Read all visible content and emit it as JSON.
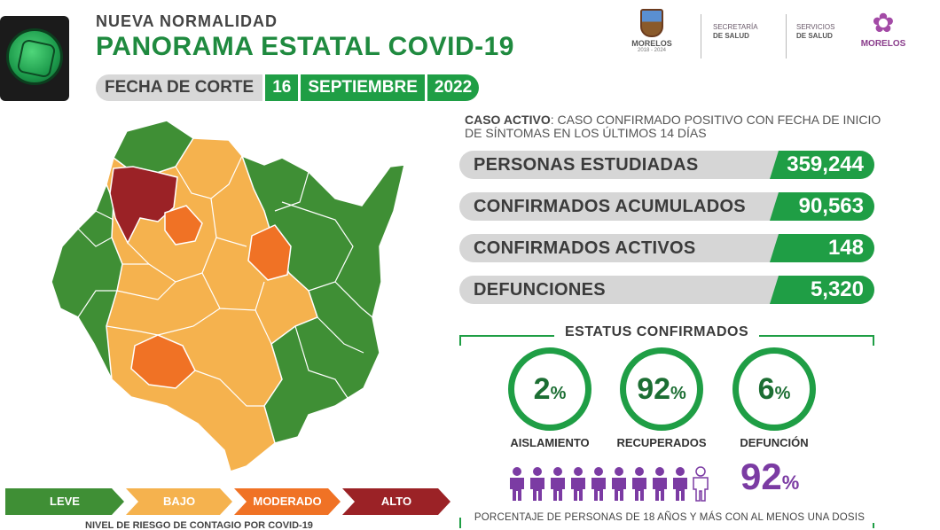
{
  "header": {
    "kicker": "NUEVA  NORMALIDAD",
    "title": "PANORAMA ESTATAL COVID-19",
    "cutoff_label": "FECHA DE CORTE",
    "cutoff_day": "16",
    "cutoff_month": "SEPTIEMBRE",
    "cutoff_year": "2022"
  },
  "logos": {
    "state": "MORELOS",
    "state_years": "2018 - 2024",
    "org1_line1": "SECRETARÍA",
    "org1_line2": "DE SALUD",
    "org2_line1": "SERVICIOS",
    "org2_line2": "DE SALUD",
    "brand": "MORELOS"
  },
  "definition": {
    "term": "CASO ACTIVO",
    "text": ": CASO CONFIRMADO POSITIVO CON FECHA DE INICIO DE SÍNTOMAS EN LOS ÚLTIMOS 14 DÍAS"
  },
  "stats": [
    {
      "label": "PERSONAS ESTUDIADAS",
      "value": "359,244"
    },
    {
      "label": "CONFIRMADOS ACUMULADOS",
      "value": "90,563"
    },
    {
      "label": "CONFIRMADOS ACTIVOS",
      "value": "148"
    },
    {
      "label": "DEFUNCIONES",
      "value": "5,320"
    }
  ],
  "status": {
    "title": "ESTATUS CONFIRMADOS",
    "items": [
      {
        "value": "2",
        "unit": "%",
        "label": "AISLAMIENTO"
      },
      {
        "value": "92",
        "unit": "%",
        "label": "RECUPERADOS"
      },
      {
        "value": "6",
        "unit": "%",
        "label": "DEFUNCIÓN"
      }
    ]
  },
  "vaccination": {
    "value": "92",
    "unit": "%",
    "fraction": 0.92,
    "note": "PORCENTAJE DE PERSONAS DE 18 AÑOS Y MÁS CON AL MENOS UNA DOSIS"
  },
  "legend": {
    "items": [
      {
        "label": "LEVE",
        "color": "#3f8f35"
      },
      {
        "label": "BAJO",
        "color": "#f5b24e"
      },
      {
        "label": "MODERADO",
        "color": "#f07225"
      },
      {
        "label": "ALTO",
        "color": "#9b2226"
      }
    ],
    "caption_prefix": "NIVEL DE RIESGO DE CONTAGIO POR ",
    "caption_bold": "COVID-19"
  },
  "colors": {
    "green": "#1f9e45",
    "leve": "#3f8f35",
    "bajo": "#f5b24e",
    "moderado": "#f07225",
    "alto": "#9b2226",
    "purple": "#7b3ba3"
  }
}
